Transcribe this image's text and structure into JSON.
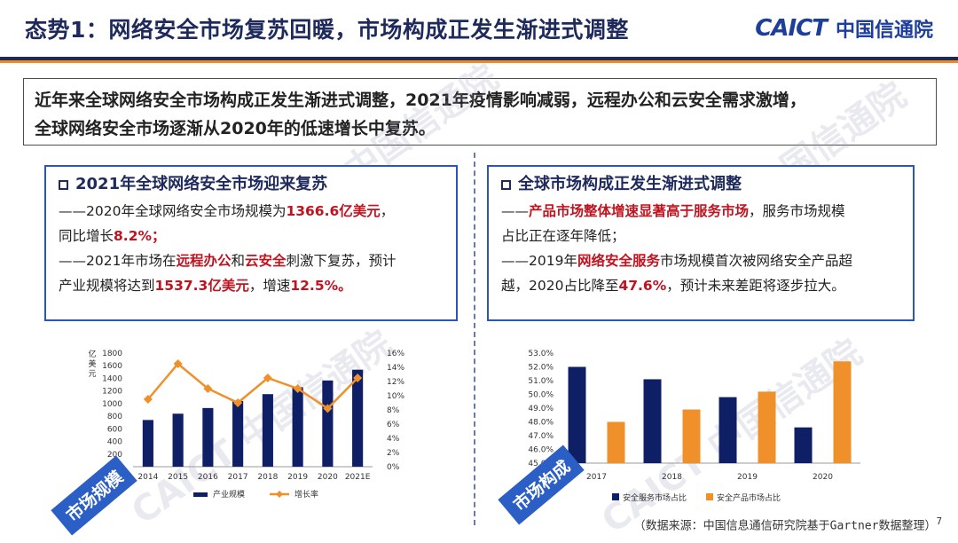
{
  "header": {
    "title": "态势1：网络安全市场复苏回暖，市场构成正发生渐进式调整",
    "logo_mark": "CAICT",
    "logo_name": "中国信通院"
  },
  "summary": {
    "line1": "近年来全球网络安全市场构成正发生渐进式调整，2021年疫情影响减弱，远程办公和云安全需求激增，",
    "line2": "全球网络安全市场逐渐从2020年的低速增长中复苏。"
  },
  "left_panel": {
    "title": "2021年全球网络安全市场迎来复苏",
    "p1_a": "——2020年全球网络安全市场规模为",
    "p1_b": "1366.6亿美元",
    "p1_c": "，",
    "p1_d": "同比增长",
    "p1_e": "8.2%；",
    "p2_a": "——2021年市场在",
    "p2_b": "远程办公",
    "p2_c": "和",
    "p2_d": "云安全",
    "p2_e": "刺激下复苏，预计",
    "p2_f": "产业规模将达到",
    "p2_g": "1537.3亿美元",
    "p2_h": "，增速",
    "p2_i": "12.5%。"
  },
  "right_panel": {
    "title": "全球市场构成正发生渐进式调整",
    "p1_a": "——",
    "p1_b": "产品市场整体增速显著高于服务市场",
    "p1_c": "，服务市场规模",
    "p1_d": "占比正在逐年降低；",
    "p2_a": "——2019年",
    "p2_b": "网络安全服务",
    "p2_c": "市场规模首次被网络安全产品超",
    "p2_d": "越，2020占比降至",
    "p2_e": "47.6%",
    "p2_f": "，预计未来差距将逐步拉大。"
  },
  "tags": {
    "left": "市场规模",
    "right": "市场构成"
  },
  "source": "（数据来源：中国信息通信研究院基于Gartner数据整理）",
  "page_number": "7",
  "watermark": "CAICT 中国信通院",
  "colors": {
    "navy": "#1f2a5c",
    "orange": "#f08a1c",
    "bar_navy": "#0f1f66",
    "bar_orange": "#f0902a",
    "accent_blue": "#2b56b8",
    "red": "#c0131f"
  },
  "chart_data": [
    {
      "type": "bar",
      "categories": [
        "2014",
        "2015",
        "2016",
        "2017",
        "2018",
        "2019",
        "2020",
        "2021E"
      ],
      "ylabel": "亿美元",
      "ylim": [
        0,
        1800
      ],
      "yticks": [
        "0",
        "200",
        "400",
        "600",
        "800",
        "1000",
        "1200",
        "1400",
        "1600",
        "1800"
      ],
      "y2lim": [
        0,
        16
      ],
      "y2ticks": [
        "0%",
        "2%",
        "4%",
        "6%",
        "8%",
        "10%",
        "12%",
        "14%",
        "16%"
      ],
      "series": [
        {
          "name": "产业规模",
          "type": "bar",
          "axis": "left",
          "values": [
            740,
            840,
            930,
            1040,
            1150,
            1260,
            1366.6,
            1537.3
          ]
        },
        {
          "name": "增长率",
          "type": "line",
          "axis": "right",
          "values": [
            9.5,
            14.5,
            11.0,
            9.0,
            12.5,
            11.0,
            8.2,
            12.5
          ]
        }
      ],
      "legend": "bottom",
      "grid": false
    },
    {
      "type": "bar",
      "categories": [
        "2017",
        "2018",
        "2019",
        "2020"
      ],
      "ylim": [
        45.0,
        53.0
      ],
      "yticks": [
        "45.0%",
        "46.0%",
        "47.0%",
        "48.0%",
        "49.0%",
        "50.0%",
        "51.0%",
        "52.0%",
        "53.0%"
      ],
      "series": [
        {
          "name": "安全服务市场占比",
          "values": [
            52.0,
            51.1,
            49.8,
            47.6
          ]
        },
        {
          "name": "安全产品市场占比",
          "values": [
            48.0,
            48.9,
            50.2,
            52.4
          ]
        }
      ],
      "legend": "bottom",
      "grid": false
    }
  ]
}
